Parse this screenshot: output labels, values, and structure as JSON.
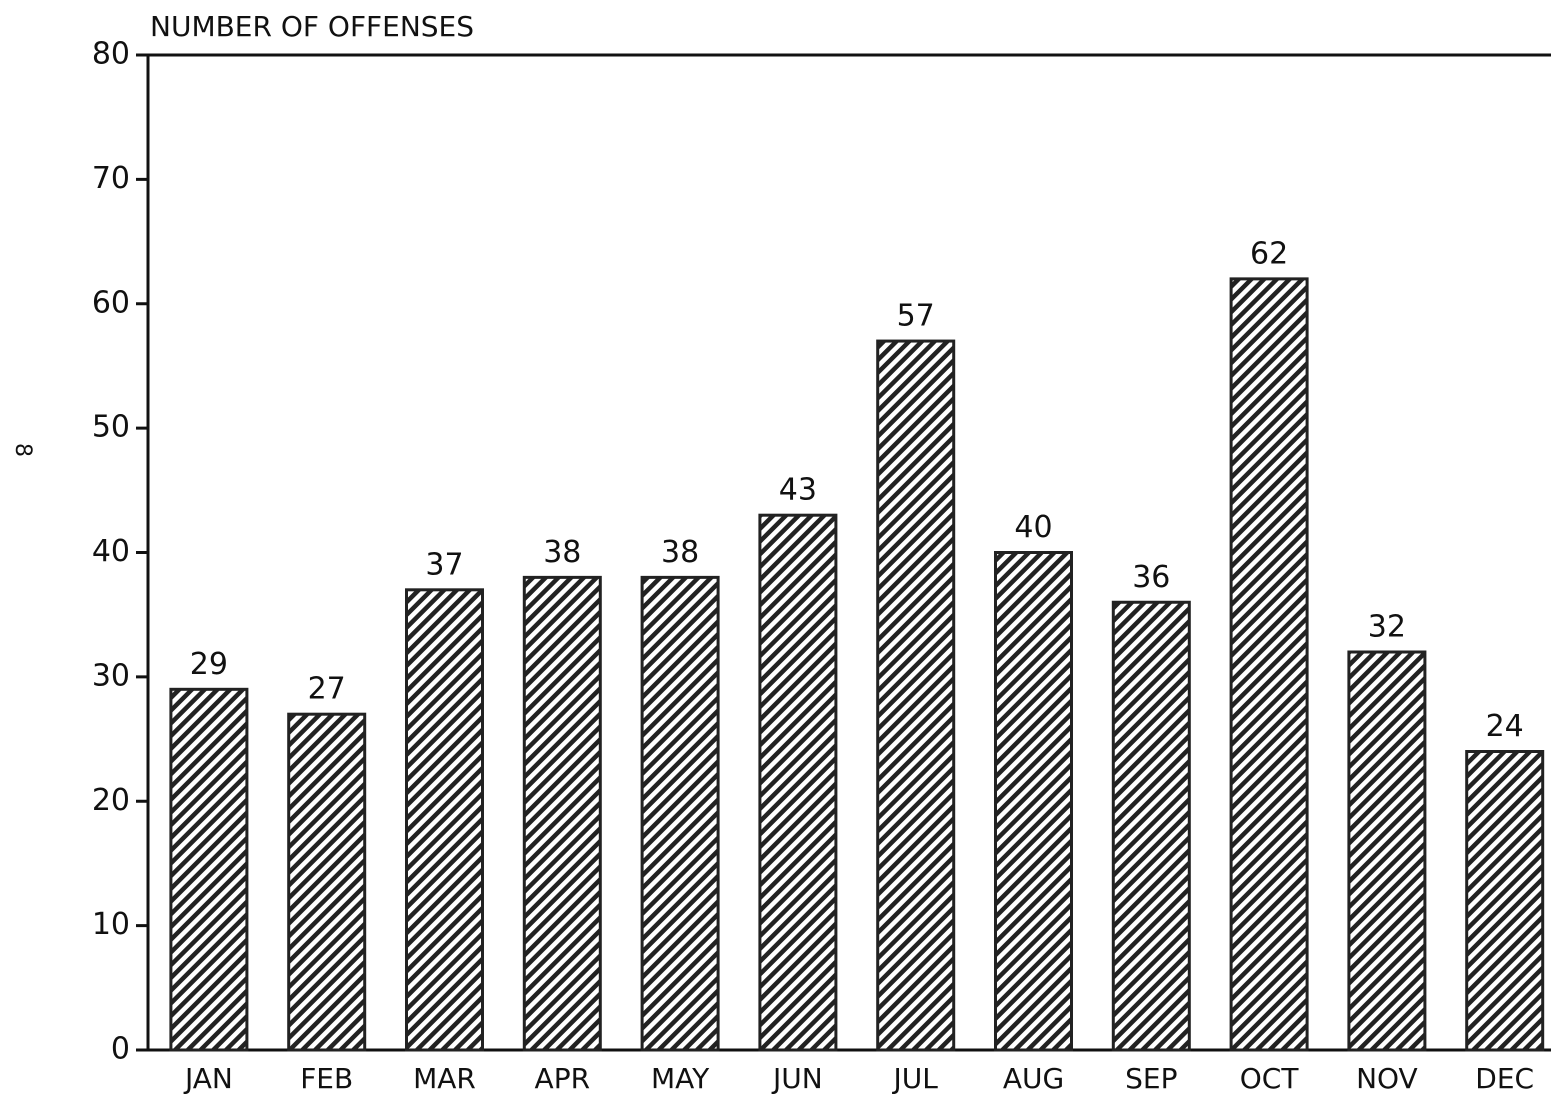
{
  "chart_data": {
    "type": "bar",
    "title": "NUMBER OF OFFENSES",
    "annotation": "8",
    "categories": [
      "JAN",
      "FEB",
      "MAR",
      "APR",
      "MAY",
      "JUN",
      "JUL",
      "AUG",
      "SEP",
      "OCT",
      "NOV",
      "DEC"
    ],
    "values": [
      29,
      27,
      37,
      38,
      38,
      43,
      57,
      40,
      36,
      62,
      32,
      24
    ],
    "color": "#222222",
    "ylim": [
      0,
      80
    ],
    "yticks": [
      0,
      10,
      20,
      30,
      40,
      50,
      60,
      70,
      80
    ],
    "grid": false
  }
}
